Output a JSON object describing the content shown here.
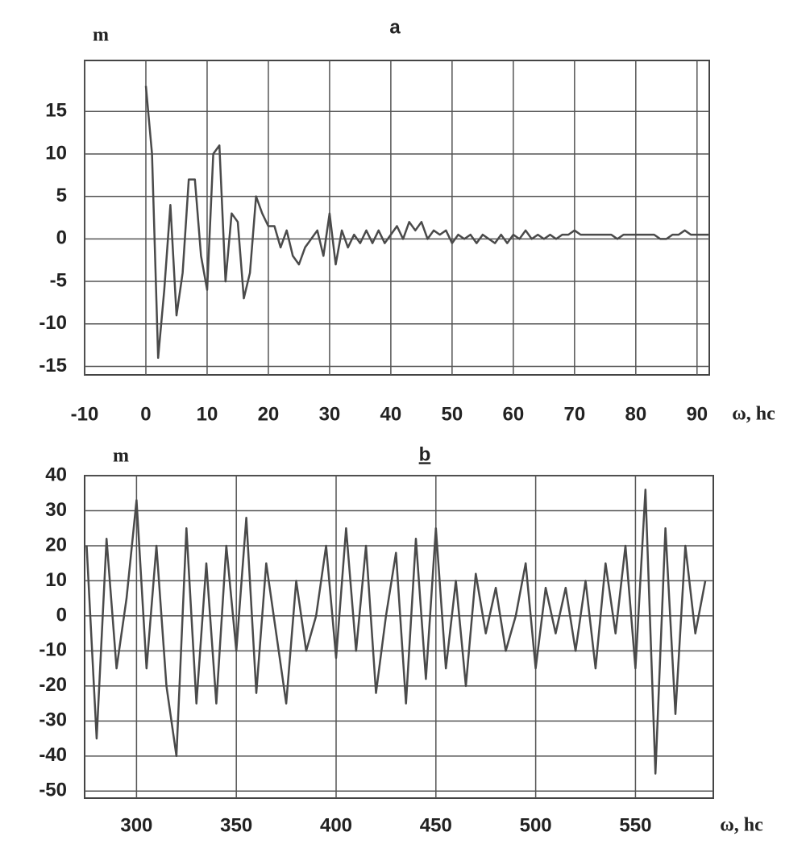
{
  "chart_data": [
    {
      "type": "line",
      "title": "a",
      "y_label": "m",
      "x_label": "ω, hc",
      "color": "#4a4a4a",
      "grid": true,
      "x": [
        0,
        1,
        2,
        3,
        4,
        5,
        6,
        7,
        8,
        9,
        10,
        11,
        12,
        13,
        14,
        15,
        16,
        17,
        18,
        19,
        20,
        21,
        22,
        23,
        24,
        25,
        26,
        27,
        28,
        29,
        30,
        31,
        32,
        33,
        34,
        35,
        36,
        37,
        38,
        39,
        40,
        41,
        42,
        43,
        44,
        45,
        46,
        47,
        48,
        49,
        50,
        51,
        52,
        53,
        54,
        55,
        56,
        57,
        58,
        59,
        60,
        61,
        62,
        63,
        64,
        65,
        66,
        67,
        68,
        69,
        70,
        71,
        72,
        73,
        74,
        75,
        76,
        77,
        78,
        79,
        80,
        81,
        82,
        83,
        84,
        85,
        86,
        87,
        88,
        89,
        90,
        91,
        92
      ],
      "values": [
        18,
        10,
        -14,
        -6,
        4,
        -9,
        -4,
        7,
        7,
        -2,
        -6,
        10,
        11,
        -5,
        3,
        2,
        -7,
        -4,
        5,
        3,
        1.5,
        1.5,
        -1,
        1,
        -2,
        -3,
        -1,
        0,
        1,
        -2,
        3,
        -3,
        1,
        -1,
        0.5,
        -0.5,
        1,
        -0.5,
        1,
        -0.5,
        0.5,
        1.5,
        0,
        2,
        1,
        2,
        0,
        1,
        0.5,
        1,
        -0.5,
        0.5,
        0,
        0.5,
        -0.5,
        0.5,
        0,
        -0.5,
        0.5,
        -0.5,
        0.5,
        0,
        1,
        0,
        0.5,
        0,
        0.5,
        0,
        0.5,
        0.5,
        1,
        0.5,
        0.5,
        0.5,
        0.5,
        0.5,
        0.5,
        0,
        0.5,
        0.5,
        0.5,
        0.5,
        0.5,
        0.5,
        0,
        0,
        0.5,
        0.5,
        1,
        0.5,
        0.5,
        0.5,
        0.5
      ],
      "xlim": [
        -10,
        92
      ],
      "ylim": [
        -16,
        21
      ],
      "xticks": [
        -10,
        0,
        10,
        20,
        30,
        40,
        50,
        60,
        70,
        80,
        90
      ],
      "yticks": [
        -15,
        -10,
        -5,
        0,
        5,
        10,
        15
      ]
    },
    {
      "type": "line",
      "title": "b",
      "y_label": "m",
      "x_label": "ω, hc",
      "color": "#4a4a4a",
      "grid": true,
      "x": [
        275,
        280,
        285,
        290,
        295,
        300,
        305,
        310,
        315,
        320,
        325,
        330,
        335,
        340,
        345,
        350,
        355,
        360,
        365,
        370,
        375,
        380,
        385,
        390,
        395,
        400,
        405,
        410,
        415,
        420,
        425,
        430,
        435,
        440,
        445,
        450,
        455,
        460,
        465,
        470,
        475,
        480,
        485,
        490,
        495,
        500,
        505,
        510,
        515,
        520,
        525,
        530,
        535,
        540,
        545,
        550,
        555,
        560,
        565,
        570,
        575,
        580,
        585
      ],
      "values": [
        20,
        -35,
        22,
        -15,
        5,
        33,
        -15,
        20,
        -20,
        -40,
        25,
        -25,
        15,
        -25,
        20,
        -10,
        28,
        -22,
        15,
        -5,
        -25,
        10,
        -10,
        0,
        20,
        -12,
        25,
        -10,
        20,
        -22,
        0,
        18,
        -25,
        22,
        -18,
        25,
        -15,
        10,
        -20,
        12,
        -5,
        8,
        -10,
        0,
        15,
        -15,
        8,
        -5,
        8,
        -10,
        10,
        -15,
        15,
        -5,
        20,
        -15,
        36,
        -45,
        25,
        -28,
        20,
        -5,
        10
      ],
      "xlim": [
        274,
        589
      ],
      "ylim": [
        -52,
        40
      ],
      "xticks": [
        300,
        350,
        400,
        450,
        500,
        550
      ],
      "yticks": [
        -50,
        -40,
        -30,
        -20,
        -10,
        0,
        10,
        20,
        30,
        40
      ]
    }
  ]
}
